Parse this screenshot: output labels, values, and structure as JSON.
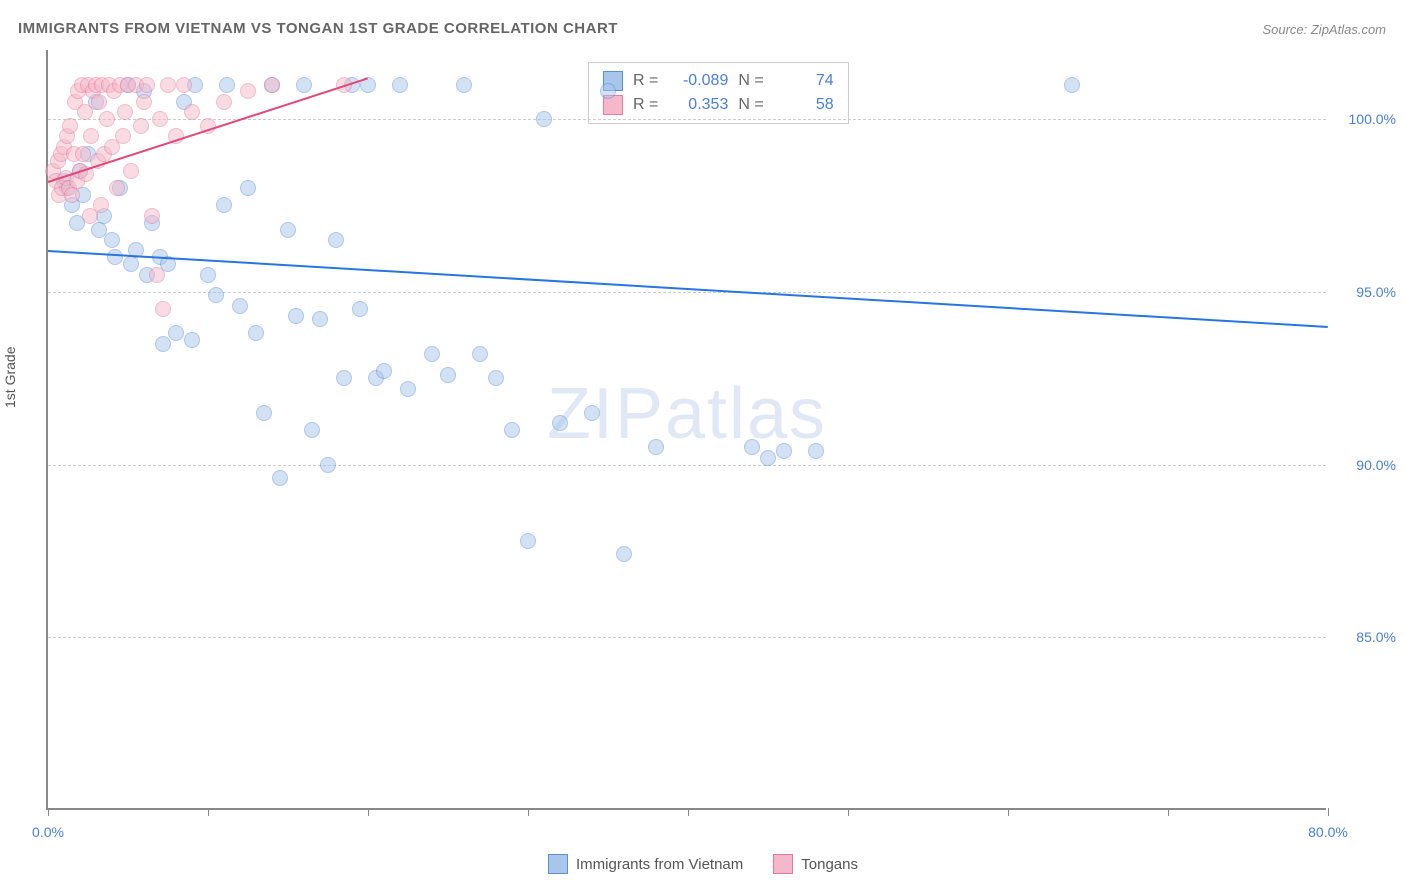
{
  "title": "IMMIGRANTS FROM VIETNAM VS TONGAN 1ST GRADE CORRELATION CHART",
  "source": "Source: ZipAtlas.com",
  "watermark": "ZIPatlas",
  "y_axis_label": "1st Grade",
  "chart": {
    "type": "scatter",
    "xlim": [
      0,
      80
    ],
    "ylim": [
      80,
      102
    ],
    "x_ticks": [
      0,
      10,
      20,
      30,
      40,
      50,
      60,
      70,
      80
    ],
    "x_tick_labels": {
      "0": "0.0%",
      "80": "80.0%"
    },
    "y_ticks": [
      85,
      90,
      95,
      100
    ],
    "y_tick_labels": {
      "85": "85.0%",
      "90": "90.0%",
      "95": "95.0%",
      "100": "100.0%"
    },
    "grid_color": "#cccccc",
    "background_color": "#ffffff",
    "axis_color": "#888888",
    "tick_label_color": "#4a7fd8",
    "marker_size": 16,
    "marker_opacity": 0.5,
    "series": [
      {
        "name": "Immigrants from Vietnam",
        "fill_color": "#a8c5ec",
        "stroke_color": "#5b8fd6",
        "line_color": "#2975e0",
        "R": "-0.089",
        "N": "74",
        "trend": {
          "x1": 0,
          "y1": 96.2,
          "x2": 80,
          "y2": 94.0
        },
        "points": [
          [
            1,
            98.2
          ],
          [
            1.2,
            98.0
          ],
          [
            1.5,
            97.5
          ],
          [
            1.8,
            97.0
          ],
          [
            2,
            98.5
          ],
          [
            2.2,
            97.8
          ],
          [
            2.5,
            99.0
          ],
          [
            3,
            100.5
          ],
          [
            3.2,
            96.8
          ],
          [
            3.5,
            97.2
          ],
          [
            4,
            96.5
          ],
          [
            4.2,
            96.0
          ],
          [
            4.5,
            98.0
          ],
          [
            5,
            101.0
          ],
          [
            5.2,
            95.8
          ],
          [
            5.5,
            96.2
          ],
          [
            6,
            100.8
          ],
          [
            6.2,
            95.5
          ],
          [
            6.5,
            97.0
          ],
          [
            7,
            96.0
          ],
          [
            7.2,
            93.5
          ],
          [
            7.5,
            95.8
          ],
          [
            8,
            93.8
          ],
          [
            8.5,
            100.5
          ],
          [
            9,
            93.6
          ],
          [
            9.2,
            101.0
          ],
          [
            10,
            95.5
          ],
          [
            10.5,
            94.9
          ],
          [
            11,
            97.5
          ],
          [
            11.2,
            101.0
          ],
          [
            12,
            94.6
          ],
          [
            12.5,
            98.0
          ],
          [
            13,
            93.8
          ],
          [
            13.5,
            91.5
          ],
          [
            14,
            101.0
          ],
          [
            14.5,
            89.6
          ],
          [
            15,
            96.8
          ],
          [
            15.5,
            94.3
          ],
          [
            16,
            101.0
          ],
          [
            16.5,
            91.0
          ],
          [
            17,
            94.2
          ],
          [
            17.5,
            90.0
          ],
          [
            18,
            96.5
          ],
          [
            18.5,
            92.5
          ],
          [
            19,
            101.0
          ],
          [
            19.5,
            94.5
          ],
          [
            20,
            101.0
          ],
          [
            20.5,
            92.5
          ],
          [
            21,
            92.7
          ],
          [
            22,
            101.0
          ],
          [
            22.5,
            92.2
          ],
          [
            24,
            93.2
          ],
          [
            25,
            92.6
          ],
          [
            26,
            101.0
          ],
          [
            27,
            93.2
          ],
          [
            28,
            92.5
          ],
          [
            29,
            91.0
          ],
          [
            30,
            87.8
          ],
          [
            31,
            100.0
          ],
          [
            32,
            91.2
          ],
          [
            34,
            91.5
          ],
          [
            35,
            100.8
          ],
          [
            36,
            87.4
          ],
          [
            38,
            90.5
          ],
          [
            44,
            90.5
          ],
          [
            45,
            90.2
          ],
          [
            46,
            90.4
          ],
          [
            48,
            90.4
          ],
          [
            64,
            101.0
          ]
        ]
      },
      {
        "name": "Tongans",
        "fill_color": "#f5b8ca",
        "stroke_color": "#e57a9a",
        "line_color": "#e04a78",
        "R": "0.353",
        "N": "58",
        "trend": {
          "x1": 0,
          "y1": 98.2,
          "x2": 20,
          "y2": 101.2
        },
        "points": [
          [
            0.3,
            98.5
          ],
          [
            0.5,
            98.2
          ],
          [
            0.6,
            98.8
          ],
          [
            0.7,
            97.8
          ],
          [
            0.8,
            99.0
          ],
          [
            0.9,
            98.0
          ],
          [
            1.0,
            99.2
          ],
          [
            1.1,
            98.3
          ],
          [
            1.2,
            99.5
          ],
          [
            1.3,
            98.0
          ],
          [
            1.4,
            99.8
          ],
          [
            1.5,
            97.8
          ],
          [
            1.6,
            99.0
          ],
          [
            1.7,
            100.5
          ],
          [
            1.8,
            98.2
          ],
          [
            1.9,
            100.8
          ],
          [
            2.0,
            98.5
          ],
          [
            2.1,
            101.0
          ],
          [
            2.2,
            99.0
          ],
          [
            2.3,
            100.2
          ],
          [
            2.4,
            98.4
          ],
          [
            2.5,
            101.0
          ],
          [
            2.6,
            97.2
          ],
          [
            2.7,
            99.5
          ],
          [
            2.8,
            100.8
          ],
          [
            3.0,
            101.0
          ],
          [
            3.1,
            98.8
          ],
          [
            3.2,
            100.5
          ],
          [
            3.3,
            97.5
          ],
          [
            3.4,
            101.0
          ],
          [
            3.5,
            99.0
          ],
          [
            3.7,
            100.0
          ],
          [
            3.8,
            101.0
          ],
          [
            4.0,
            99.2
          ],
          [
            4.1,
            100.8
          ],
          [
            4.3,
            98.0
          ],
          [
            4.5,
            101.0
          ],
          [
            4.7,
            99.5
          ],
          [
            4.8,
            100.2
          ],
          [
            5.0,
            101.0
          ],
          [
            5.2,
            98.5
          ],
          [
            5.5,
            101.0
          ],
          [
            5.8,
            99.8
          ],
          [
            6.0,
            100.5
          ],
          [
            6.2,
            101.0
          ],
          [
            6.5,
            97.2
          ],
          [
            6.8,
            95.5
          ],
          [
            7.0,
            100.0
          ],
          [
            7.2,
            94.5
          ],
          [
            7.5,
            101.0
          ],
          [
            8.0,
            99.5
          ],
          [
            8.5,
            101.0
          ],
          [
            9.0,
            100.2
          ],
          [
            10.0,
            99.8
          ],
          [
            11.0,
            100.5
          ],
          [
            12.5,
            100.8
          ],
          [
            14.0,
            101.0
          ],
          [
            18.5,
            101.0
          ]
        ]
      }
    ]
  },
  "stats_legend": {
    "R_label": "R =",
    "N_label": "N ="
  },
  "bottom_legend": [
    "Immigrants from Vietnam",
    "Tongans"
  ]
}
